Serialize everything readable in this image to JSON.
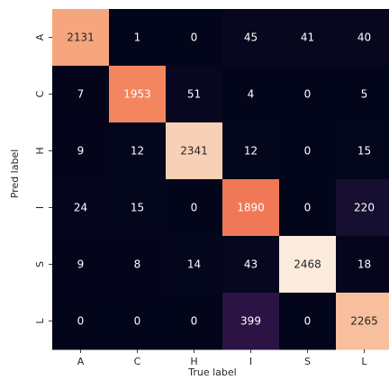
{
  "chart_data": {
    "type": "heatmap",
    "title": "",
    "xlabel": "True label",
    "ylabel": "Pred label",
    "x_categories": [
      "A",
      "C",
      "H",
      "I",
      "S",
      "L"
    ],
    "y_categories": [
      "A",
      "C",
      "H",
      "I",
      "S",
      "L"
    ],
    "matrix": [
      [
        2131,
        1,
        0,
        45,
        41,
        40
      ],
      [
        7,
        1953,
        51,
        4,
        0,
        5
      ],
      [
        9,
        12,
        2341,
        12,
        0,
        15
      ],
      [
        24,
        15,
        0,
        1890,
        0,
        220
      ],
      [
        9,
        8,
        14,
        43,
        2468,
        18
      ],
      [
        0,
        0,
        0,
        399,
        0,
        2265
      ]
    ],
    "value_range": [
      0,
      2468
    ],
    "colormap": "rocket",
    "colorbar": false,
    "annotations": true
  }
}
